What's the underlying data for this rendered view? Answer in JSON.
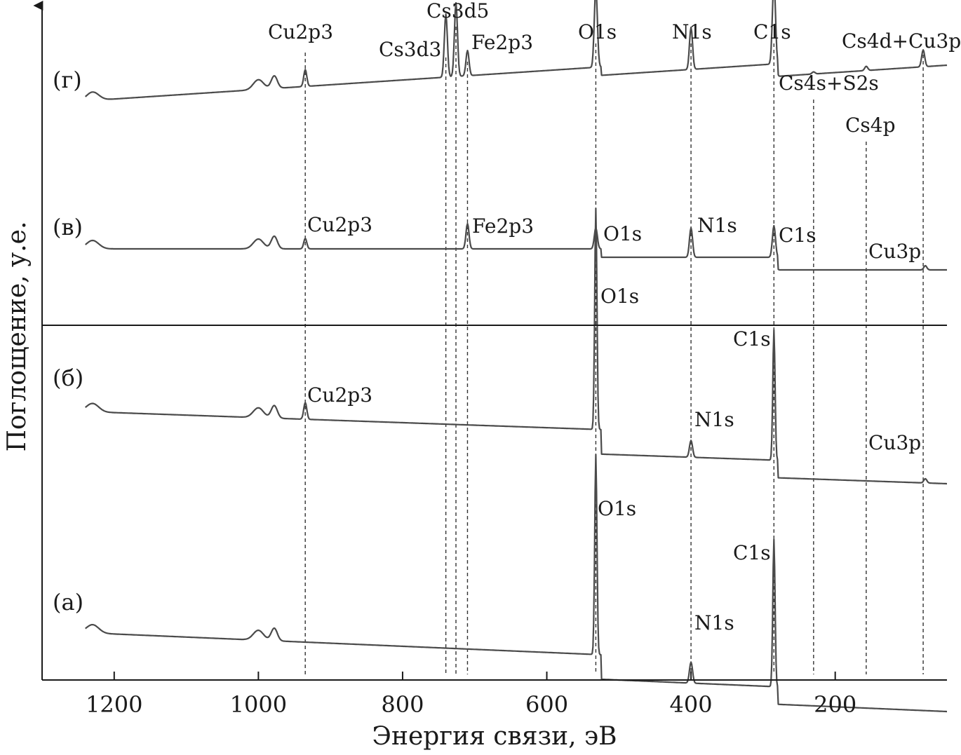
{
  "chart_data": {
    "type": "line",
    "xlabel": "Энергия связи, эВ",
    "ylabel": "Поглощение, у.е.",
    "x_reversed": true,
    "xlim": [
      1300,
      45
    ],
    "x_ticks": [
      1200,
      1000,
      800,
      600,
      400,
      200
    ],
    "y_ticks": [],
    "grid": false,
    "colors": {
      "line": "#4a4a4a",
      "axis": "#1a1a1a",
      "guide": "#333333"
    },
    "reference_lines": [
      935,
      740,
      726,
      710,
      532,
      400,
      285,
      230,
      157,
      78
    ],
    "series": [
      {
        "name": "(а)",
        "baseline": 0.0,
        "peaks": [
          {
            "label": "O1s",
            "x": 532,
            "height": 0.95
          },
          {
            "label": "C1s",
            "x": 285,
            "height": 0.7
          },
          {
            "label": "N1s",
            "x": 400,
            "height": 0.1
          }
        ]
      },
      {
        "name": "(б)",
        "baseline": 1.0,
        "peaks": [
          {
            "label": "O1s",
            "x": 532,
            "height": 1.05
          },
          {
            "label": "C1s",
            "x": 285,
            "height": 0.62
          },
          {
            "label": "Cu2p3",
            "x": 935,
            "height": 0.08
          },
          {
            "label": "N1s",
            "x": 400,
            "height": 0.08
          },
          {
            "label": "Cu3p",
            "x": 75,
            "height": 0.02
          }
        ]
      },
      {
        "name": "(в)",
        "baseline": 2.0,
        "peaks": [
          {
            "label": "Cu2p3",
            "x": 935,
            "height": 0.05
          },
          {
            "label": "Fe2p3",
            "x": 710,
            "height": 0.12
          },
          {
            "label": "O1s",
            "x": 532,
            "height": 0.1
          },
          {
            "label": "N1s",
            "x": 400,
            "height": 0.14
          },
          {
            "label": "C1s",
            "x": 285,
            "height": 0.15
          },
          {
            "label": "Cu3p",
            "x": 75,
            "height": 0.02
          }
        ]
      },
      {
        "name": "(г)",
        "baseline": 3.0,
        "peaks": [
          {
            "label": "Cu2p3",
            "x": 935,
            "height": 0.08
          },
          {
            "label": "Cs3d3",
            "x": 740,
            "height": 0.3
          },
          {
            "label": "Cs3d5",
            "x": 726,
            "height": 0.35
          },
          {
            "label": "Fe2p3",
            "x": 710,
            "height": 0.12
          },
          {
            "label": "O1s",
            "x": 532,
            "height": 0.38
          },
          {
            "label": "N1s",
            "x": 400,
            "height": 0.2
          },
          {
            "label": "C1s",
            "x": 285,
            "height": 0.4
          },
          {
            "label": "Cs4s+S2s",
            "x": 230,
            "height": 0.01
          },
          {
            "label": "Cs4p",
            "x": 157,
            "height": 0.02
          },
          {
            "label": "Cs4d+Cu3p",
            "x": 78,
            "height": 0.08
          }
        ]
      }
    ]
  }
}
